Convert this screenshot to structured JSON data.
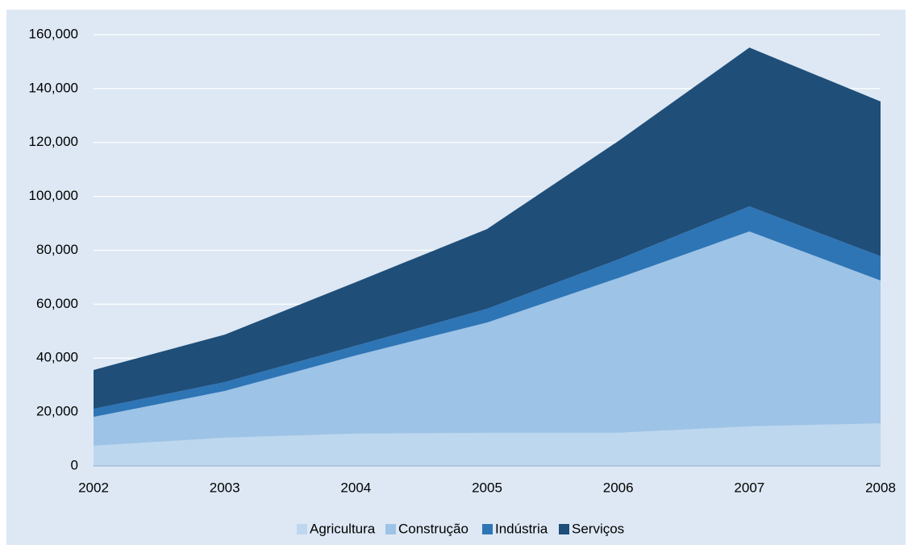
{
  "chart_data": {
    "type": "stacked_area",
    "categories": [
      "2002",
      "2003",
      "2004",
      "2005",
      "2006",
      "2007",
      "2008"
    ],
    "series": [
      {
        "name": "Agricultura",
        "color": "#bdd7ee",
        "values": [
          7500,
          10500,
          12000,
          12300,
          12300,
          14700,
          15800
        ]
      },
      {
        "name": "Construção",
        "color": "#9dc3e6",
        "values": [
          10700,
          17300,
          29000,
          40900,
          57400,
          72300,
          53000
        ]
      },
      {
        "name": "Indústria",
        "color": "#2e75b6",
        "values": [
          3000,
          3300,
          3600,
          5100,
          6900,
          9300,
          9000
        ]
      },
      {
        "name": "Serviços",
        "color": "#1f4e79",
        "values": [
          14400,
          17600,
          23600,
          29600,
          43900,
          58900,
          57400
        ]
      }
    ],
    "ylim": [
      0,
      160000
    ],
    "yticks": [
      0,
      {
        "value": 20000,
        "label": "20,000"
      },
      {
        "value": 40000,
        "label": "40,000"
      },
      {
        "value": 60000,
        "label": "60,000"
      },
      {
        "value": 80000,
        "label": "80,000"
      },
      {
        "value": 100000,
        "label": "100,000"
      },
      {
        "value": 120000,
        "label": "120,000"
      },
      {
        "value": 140000,
        "label": "140,000"
      },
      {
        "value": 160000,
        "label": "160,000"
      }
    ],
    "grid": true,
    "legend": "bottom"
  }
}
